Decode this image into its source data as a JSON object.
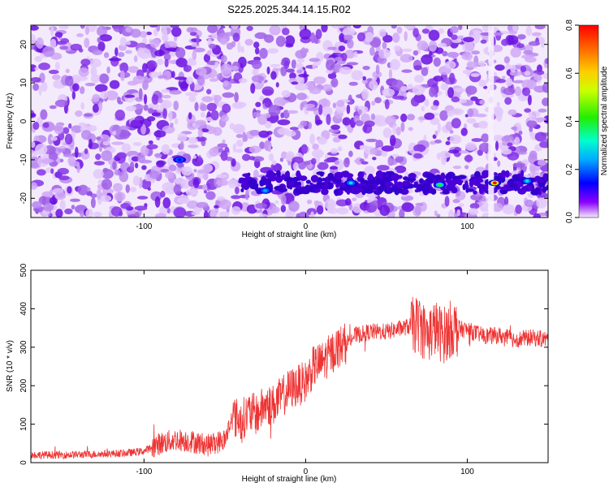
{
  "title": "S225.2025.344.14.15.R02",
  "chart_data": [
    {
      "type": "heatmap",
      "title": "",
      "xlabel": "Height of straight line (km)",
      "ylabel": "Frequency (Hz)",
      "xlim": [
        -170,
        150
      ],
      "ylim": [
        -25,
        25
      ],
      "xticks": [
        -100,
        0,
        100
      ],
      "yticks": [
        -20,
        -10,
        0,
        10,
        20
      ],
      "colorbar": {
        "label": "Normalized spectral amplitude",
        "range": [
          0.0,
          0.8
        ],
        "ticks": [
          "0.0",
          "0.2",
          "0.4",
          "0.6",
          "0.8"
        ]
      },
      "signal_band": {
        "frequency": -16,
        "from_x": -40,
        "to_x": 150
      },
      "hotspots": [
        {
          "x": -78,
          "y": -10,
          "value": 0.15
        },
        {
          "x": -25,
          "y": -18,
          "value": 0.25
        },
        {
          "x": 28,
          "y": -16,
          "value": 0.3
        },
        {
          "x": 83,
          "y": -16.5,
          "value": 0.4
        },
        {
          "x": 117,
          "y": -16,
          "value": 0.8
        },
        {
          "x": 137,
          "y": -15.5,
          "value": 0.3
        }
      ]
    },
    {
      "type": "line",
      "title": "",
      "xlabel": "Height of straight line (km)",
      "ylabel": "SNR (10 * v/v)",
      "xlim": [
        -170,
        150
      ],
      "ylim": [
        0,
        500
      ],
      "xticks": [
        -100,
        0,
        100
      ],
      "yticks": [
        0,
        100,
        200,
        300,
        400,
        500
      ],
      "series": [
        {
          "color": "#ee3333",
          "x": [
            -170,
            -150,
            -130,
            -110,
            -100,
            -90,
            -80,
            -70,
            -60,
            -50,
            -45,
            -40,
            -35,
            -30,
            -25,
            -20,
            -15,
            -10,
            -5,
            0,
            5,
            10,
            15,
            20,
            25,
            30,
            40,
            50,
            60,
            70,
            75,
            80,
            85,
            90,
            100,
            110,
            120,
            130,
            140,
            150
          ],
          "y": [
            20,
            20,
            22,
            25,
            30,
            50,
            60,
            55,
            45,
            60,
            120,
            110,
            130,
            125,
            150,
            150,
            170,
            190,
            200,
            210,
            250,
            260,
            280,
            300,
            310,
            330,
            340,
            340,
            350,
            360,
            330,
            350,
            330,
            350,
            345,
            330,
            330,
            320,
            325,
            320
          ]
        }
      ]
    }
  ]
}
